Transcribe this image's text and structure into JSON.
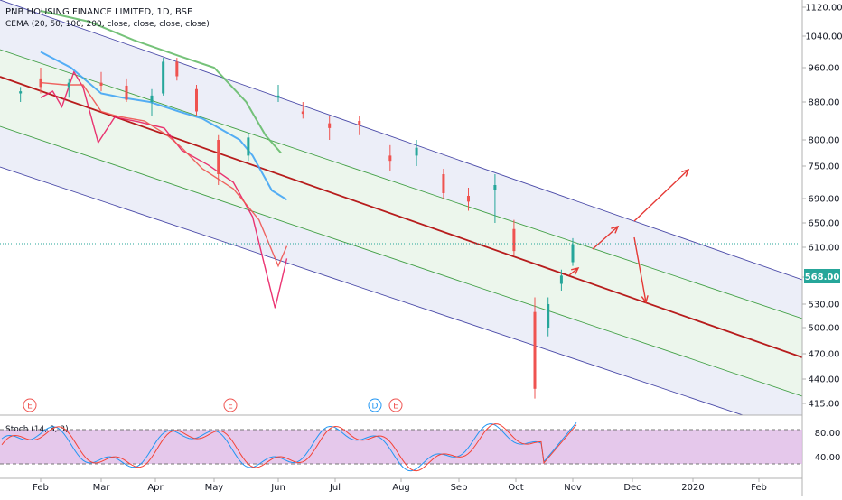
{
  "legend": {
    "title": "PNB HOUSING FINANCE LIMITED, 1D, BSE",
    "indicator": "CEMA (20, 50, 100, 200, close, close, close, close)"
  },
  "price_axis": {
    "ticks": [
      "1120.00",
      "1040.00",
      "960.00",
      "880.00",
      "800.00",
      "750.00",
      "690.00",
      "650.00",
      "610.00",
      "570.00",
      "530.00",
      "500.00",
      "470.00",
      "440.00",
      "415.00"
    ],
    "last_price": "568.00"
  },
  "time_axis": {
    "ticks": [
      "Feb",
      "Mar",
      "Apr",
      "May",
      "Jun",
      "Jul",
      "Aug",
      "Sep",
      "Oct",
      "Nov",
      "Dec",
      "2020",
      "Feb"
    ]
  },
  "event_markers": [
    "E",
    "E",
    "D",
    "E"
  ],
  "stoch": {
    "label": "Stoch (14, 3, 3)",
    "ticks": [
      "80.00",
      "40.00"
    ]
  },
  "colors": {
    "candle_up": "#26a69a",
    "candle_down": "#ef5350",
    "ema20": "#e91e63",
    "ema50": "#ef5350",
    "ema100": "#42a5f5",
    "ema200": "#66bb6a",
    "channel_mid": "#b71c1c",
    "channel_outer": "#4a4aa8",
    "channel_inner": "#43a047",
    "arrow": "#e53935",
    "stoch_k": "#2196f3",
    "stoch_d": "#f44336",
    "stoch_band": "#e1bee7"
  },
  "chart_data": {
    "type": "candlestick",
    "title": "PNB HOUSING FINANCE LIMITED, 1D, BSE",
    "price_range": [
      400,
      1140
    ],
    "last_price": 568,
    "time_range": [
      "2019-01-15",
      "2020-02-28"
    ],
    "candles": [
      {
        "date": "2019-01-21",
        "o": 900,
        "h": 915,
        "l": 880,
        "c": 905
      },
      {
        "date": "2019-02-01",
        "o": 935,
        "h": 960,
        "l": 900,
        "c": 915
      },
      {
        "date": "2019-02-15",
        "o": 915,
        "h": 935,
        "l": 890,
        "c": 925
      },
      {
        "date": "2019-03-01",
        "o": 925,
        "h": 950,
        "l": 905,
        "c": 918
      },
      {
        "date": "2019-03-15",
        "o": 918,
        "h": 935,
        "l": 880,
        "c": 885
      },
      {
        "date": "2019-03-29",
        "o": 880,
        "h": 910,
        "l": 850,
        "c": 895
      },
      {
        "date": "2019-04-05",
        "o": 900,
        "h": 985,
        "l": 895,
        "c": 975
      },
      {
        "date": "2019-04-12",
        "o": 975,
        "h": 985,
        "l": 930,
        "c": 940
      },
      {
        "date": "2019-04-22",
        "o": 910,
        "h": 920,
        "l": 850,
        "c": 860
      },
      {
        "date": "2019-05-03",
        "o": 800,
        "h": 810,
        "l": 715,
        "c": 735
      },
      {
        "date": "2019-05-17",
        "o": 770,
        "h": 815,
        "l": 760,
        "c": 805
      },
      {
        "date": "2019-05-31",
        "o": 890,
        "h": 920,
        "l": 880,
        "c": 895
      },
      {
        "date": "2019-06-14",
        "o": 860,
        "h": 880,
        "l": 845,
        "c": 855
      },
      {
        "date": "2019-06-28",
        "o": 835,
        "h": 850,
        "l": 800,
        "c": 825
      },
      {
        "date": "2019-07-12",
        "o": 840,
        "h": 850,
        "l": 810,
        "c": 832
      },
      {
        "date": "2019-07-26",
        "o": 770,
        "h": 790,
        "l": 740,
        "c": 760
      },
      {
        "date": "2019-08-09",
        "o": 770,
        "h": 800,
        "l": 750,
        "c": 785
      },
      {
        "date": "2019-08-23",
        "o": 735,
        "h": 745,
        "l": 690,
        "c": 700
      },
      {
        "date": "2019-09-06",
        "o": 695,
        "h": 710,
        "l": 670,
        "c": 685
      },
      {
        "date": "2019-09-20",
        "o": 705,
        "h": 735,
        "l": 650,
        "c": 715
      },
      {
        "date": "2019-09-30",
        "o": 640,
        "h": 655,
        "l": 600,
        "c": 605
      },
      {
        "date": "2019-10-11",
        "o": 520,
        "h": 540,
        "l": 420,
        "c": 430
      },
      {
        "date": "2019-10-18",
        "o": 500,
        "h": 540,
        "l": 490,
        "c": 530
      },
      {
        "date": "2019-10-25",
        "o": 560,
        "h": 580,
        "l": 550,
        "c": 572
      },
      {
        "date": "2019-11-01",
        "o": 590,
        "h": 625,
        "l": 585,
        "c": 615
      }
    ],
    "series": [
      {
        "name": "EMA 20",
        "values": [
          [
            0.0,
            890
          ],
          [
            0.2,
            905
          ],
          [
            0.35,
            870
          ],
          [
            0.55,
            950
          ],
          [
            0.7,
            915
          ],
          [
            0.95,
            795
          ],
          [
            1.25,
            848
          ],
          [
            1.7,
            838
          ],
          [
            2.15,
            825
          ],
          [
            2.45,
            780
          ],
          [
            2.9,
            752
          ],
          [
            3.3,
            720
          ],
          [
            3.6,
            660
          ],
          [
            3.95,
            525
          ],
          [
            4.15,
            595
          ]
        ]
      },
      {
        "name": "EMA 50",
        "values": [
          [
            0.0,
            925
          ],
          [
            0.4,
            920
          ],
          [
            0.7,
            920
          ],
          [
            1.0,
            860
          ],
          [
            1.3,
            850
          ],
          [
            1.8,
            840
          ],
          [
            2.2,
            810
          ],
          [
            2.45,
            785
          ],
          [
            2.8,
            745
          ],
          [
            3.3,
            708
          ],
          [
            3.7,
            655
          ],
          [
            4.0,
            585
          ],
          [
            4.15,
            612
          ]
        ]
      },
      {
        "name": "EMA 100",
        "values": [
          [
            0.0,
            1000
          ],
          [
            0.5,
            960
          ],
          [
            1.0,
            900
          ],
          [
            1.4,
            890
          ],
          [
            1.9,
            880
          ],
          [
            2.4,
            860
          ],
          [
            2.8,
            845
          ],
          [
            3.4,
            800
          ],
          [
            3.6,
            770
          ],
          [
            3.9,
            705
          ],
          [
            4.15,
            688
          ]
        ]
      },
      {
        "name": "EMA 200",
        "values": [
          [
            0.0,
            1110
          ],
          [
            0.8,
            1080
          ],
          [
            1.6,
            1030
          ],
          [
            2.4,
            990
          ],
          [
            3.0,
            960
          ],
          [
            3.5,
            880
          ],
          [
            3.8,
            810
          ],
          [
            4.05,
            775
          ]
        ]
      }
    ],
    "stochastic": {
      "label": "Stoch (14, 3, 3)",
      "levels": [
        80,
        20
      ],
      "k_last": 95,
      "d_last": 92
    }
  }
}
